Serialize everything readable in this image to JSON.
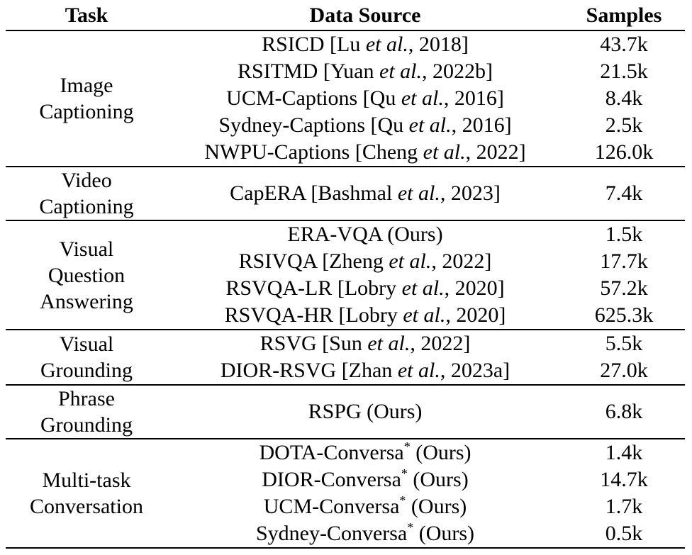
{
  "headers": {
    "task": "Task",
    "source": "Data Source",
    "samples": "Samples"
  },
  "groups": [
    {
      "task_lines": [
        "Image",
        "Captioning"
      ],
      "rows": [
        {
          "name": "RSICD [Lu ",
          "etal": "et al.",
          "year": ", 2018]",
          "samples": "43.7k"
        },
        {
          "name": "RSITMD [Yuan ",
          "etal": "et al.",
          "year": ", 2022b]",
          "samples": "21.5k"
        },
        {
          "name": "UCM-Captions [Qu ",
          "etal": "et al.",
          "year": ", 2016]",
          "samples": "8.4k"
        },
        {
          "name": "Sydney-Captions [Qu ",
          "etal": "et al.",
          "year": ", 2016]",
          "samples": "2.5k"
        },
        {
          "name": "NWPU-Captions [Cheng ",
          "etal": "et al.",
          "year": ", 2022]",
          "samples": "126.0k"
        }
      ]
    },
    {
      "task_lines": [
        "Video",
        "Captioning"
      ],
      "rows": [
        {
          "name": "CapERA [Bashmal ",
          "etal": "et al.",
          "year": ", 2023]",
          "samples": "7.4k"
        }
      ]
    },
    {
      "task_lines": [
        "Visual",
        "Question",
        "Answering"
      ],
      "rows": [
        {
          "name": "ERA-VQA (Ours)",
          "samples": "1.5k"
        },
        {
          "name": "RSIVQA [Zheng ",
          "etal": "et al.",
          "year": ", 2022]",
          "samples": "17.7k"
        },
        {
          "name": "RSVQA-LR [Lobry ",
          "etal": "et al.",
          "year": ", 2020]",
          "samples": "57.2k"
        },
        {
          "name": "RSVQA-HR [Lobry ",
          "etal": "et al.",
          "year": ", 2020]",
          "samples": "625.3k"
        }
      ]
    },
    {
      "task_lines": [
        "Visual",
        "Grounding"
      ],
      "rows": [
        {
          "name": "RSVG [Sun ",
          "etal": "et al.",
          "year": ", 2022]",
          "samples": "5.5k"
        },
        {
          "name": "DIOR-RSVG [Zhan ",
          "etal": "et al.",
          "year": ", 2023a]",
          "samples": "27.0k"
        }
      ]
    },
    {
      "task_lines": [
        "Phrase",
        "Grounding"
      ],
      "rows": [
        {
          "name": "RSPG (Ours)",
          "samples": "6.8k"
        }
      ]
    },
    {
      "task_lines": [
        "Multi-task",
        "Conversation"
      ],
      "rows": [
        {
          "name": "DOTA-Conversa",
          "sup": "*",
          "year": " (Ours)",
          "samples": "1.4k"
        },
        {
          "name": "DIOR-Conversa",
          "sup": "*",
          "year": " (Ours)",
          "samples": "14.7k"
        },
        {
          "name": "UCM-Conversa",
          "sup": "*",
          "year": " (Ours)",
          "samples": "1.7k"
        },
        {
          "name": "Sydney-Conversa",
          "sup": "*",
          "year": " (Ours)",
          "samples": "0.5k"
        }
      ]
    }
  ]
}
